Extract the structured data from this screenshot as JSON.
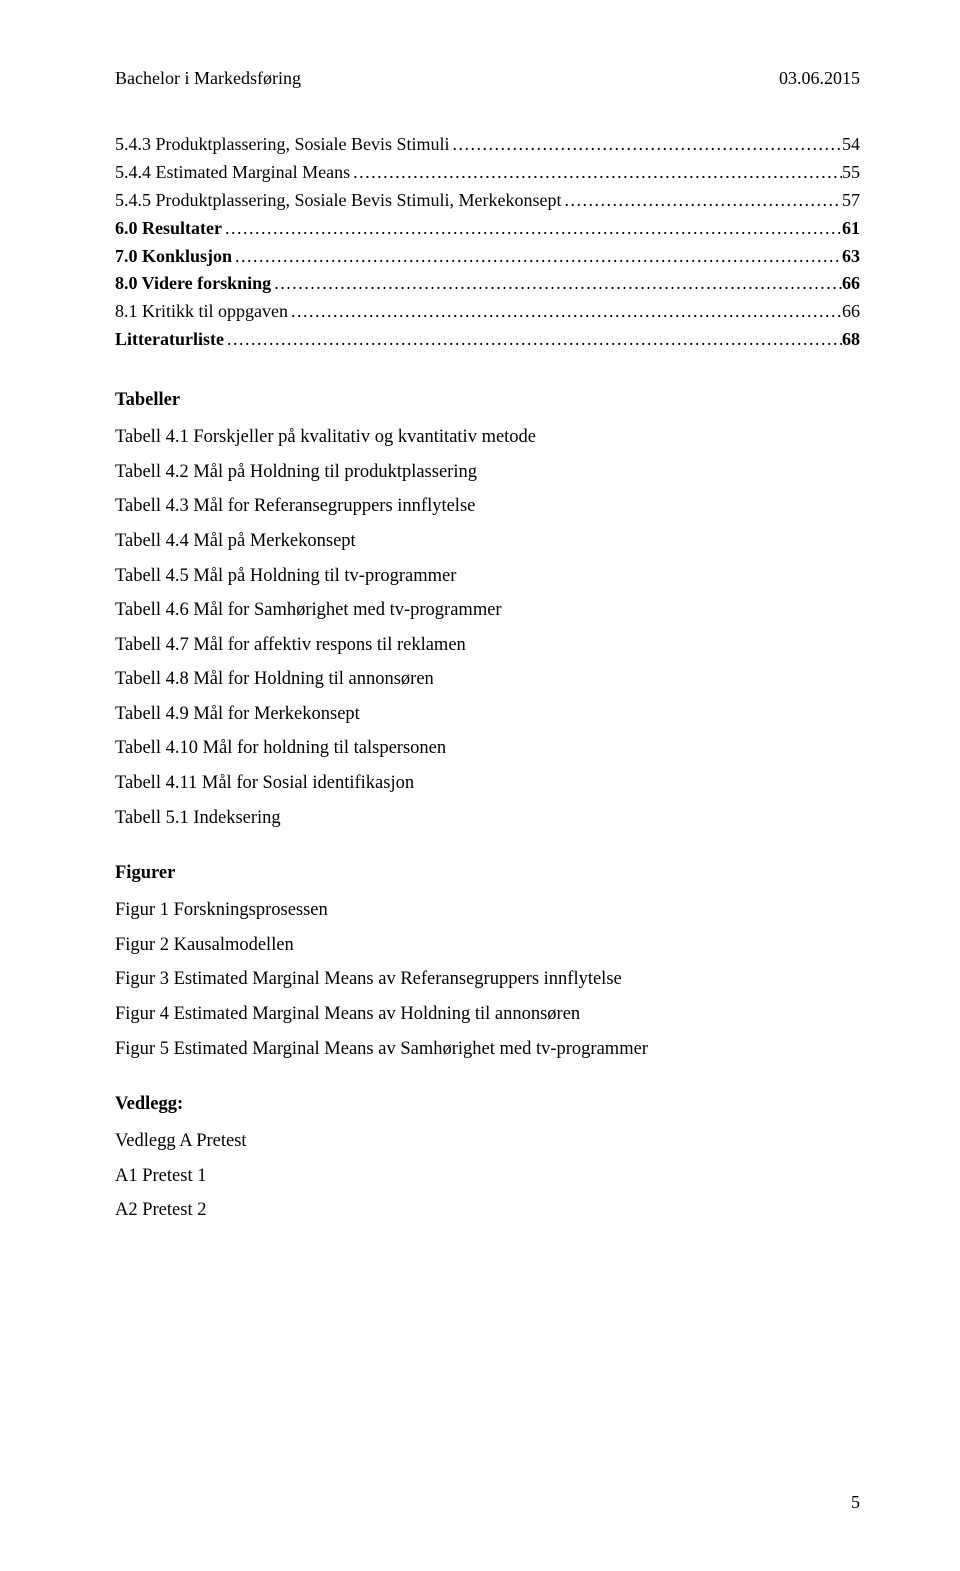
{
  "header": {
    "left": "Bachelor i Markedsføring",
    "right": "03.06.2015"
  },
  "toc": [
    {
      "title": "5.4.3 Produktplassering, Sosiale Bevis Stimuli",
      "page": "54",
      "bold": false
    },
    {
      "title": "5.4.4 Estimated Marginal Means",
      "page": "55",
      "bold": false
    },
    {
      "title": "5.4.5 Produktplassering, Sosiale Bevis Stimuli, Merkekonsept",
      "page": "57",
      "bold": false
    },
    {
      "title": "6.0 Resultater",
      "page": "61",
      "bold": true
    },
    {
      "title": "7.0 Konklusjon",
      "page": "63",
      "bold": true
    },
    {
      "title": "8.0 Videre forskning",
      "page": "66",
      "bold": true
    },
    {
      "title": "8.1 Kritikk til oppgaven",
      "page": "66",
      "bold": false
    },
    {
      "title": "Litteraturliste",
      "page": "68",
      "bold": true
    }
  ],
  "tabeller": {
    "heading": "Tabeller",
    "items": [
      "Tabell 4.1 Forskjeller på kvalitativ og kvantitativ metode",
      "Tabell 4.2 Mål på Holdning til produktplassering",
      "Tabell 4.3 Mål for Referansegruppers innflytelse",
      "Tabell 4.4 Mål på Merkekonsept",
      "Tabell 4.5 Mål på Holdning til tv-programmer",
      "Tabell 4.6 Mål for Samhørighet med tv-programmer",
      "Tabell 4.7 Mål for affektiv respons til reklamen",
      "Tabell 4.8 Mål for Holdning til annonsøren",
      "Tabell 4.9 Mål for Merkekonsept",
      "Tabell 4.10 Mål for holdning til talspersonen",
      "Tabell 4.11 Mål for Sosial identifikasjon",
      "Tabell 5.1 Indeksering"
    ]
  },
  "figurer": {
    "heading": "Figurer",
    "items": [
      "Figur 1 Forskningsprosessen",
      "Figur 2 Kausalmodellen",
      "Figur 3 Estimated Marginal Means av Referansegruppers innflytelse",
      "Figur 4 Estimated Marginal Means av Holdning til annonsøren",
      "Figur 5 Estimated Marginal Means av Samhørighet med tv-programmer"
    ]
  },
  "vedlegg": {
    "heading": "Vedlegg:",
    "items": [
      "Vedlegg A Pretest",
      "A1 Pretest 1",
      "A2 Pretest 2"
    ]
  },
  "page_number": "5"
}
